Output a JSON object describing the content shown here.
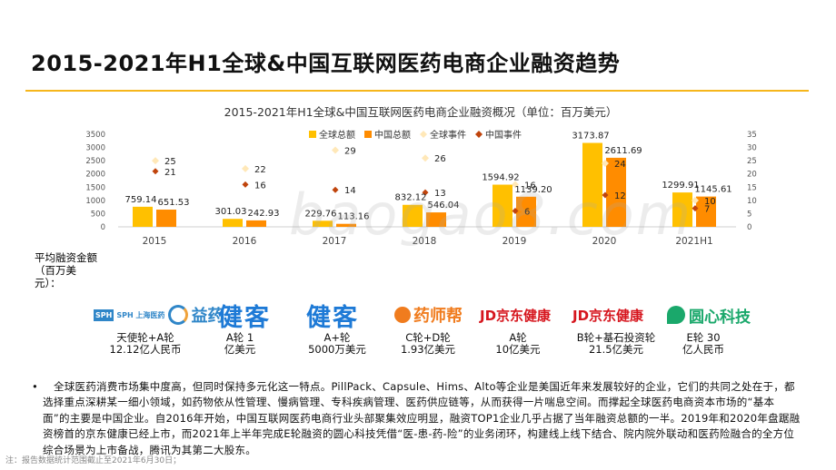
{
  "page": {
    "title": "2015-2021年H1全球&中国互联网医药电商企业融资趋势",
    "footnote": "注：报告数据统计范围截止至2021年6月30日；",
    "watermark": "baogao8.com",
    "accent_color": "#f6b61c"
  },
  "chart_data": {
    "type": "bar",
    "title": "2015-2021年H1全球&中国互联网医药电商企业融资概况（单位：百万美元）",
    "categories": [
      "2015",
      "2016",
      "2017",
      "2018",
      "2019",
      "2020",
      "2021H1"
    ],
    "series": [
      {
        "name": "全球总额",
        "kind": "bar",
        "axis": "left",
        "color": "#ffc000",
        "values": [
          759.14,
          301.03,
          229.76,
          832.12,
          1594.92,
          3173.87,
          1299.91
        ]
      },
      {
        "name": "中国总额",
        "kind": "bar",
        "axis": "left",
        "color": "#ff8c00",
        "values": [
          651.53,
          242.93,
          113.16,
          546.04,
          1139.2,
          2611.69,
          1145.61
        ]
      },
      {
        "name": "全球事件",
        "kind": "marker",
        "axis": "right",
        "color": "#ffe8b8",
        "values": [
          25,
          22,
          29,
          26,
          16,
          24,
          10
        ]
      },
      {
        "name": "中国事件",
        "kind": "marker",
        "axis": "right",
        "color": "#c0440c",
        "values": [
          21,
          16,
          14,
          13,
          6,
          12,
          7
        ]
      }
    ],
    "left_axis": {
      "ticks": [
        "0",
        "500",
        "1000",
        "1500",
        "2000",
        "2500",
        "3000",
        "3500"
      ],
      "ylim": [
        0,
        3500
      ]
    },
    "right_axis": {
      "ticks": [
        "0",
        "5",
        "10",
        "15",
        "20",
        "25",
        "30",
        "35"
      ],
      "ylim": [
        0,
        35
      ]
    },
    "legend_position": "top",
    "grid": false
  },
  "funding_label": "平均融资金额（百万美元）：",
  "companies": [
    {
      "logo_text": "益药",
      "logo_prefix": "SPH 上海医药",
      "color": "#2f86c8",
      "round": "天使轮+A轮",
      "amount": "12.12亿人民币"
    },
    {
      "logo_text": "健客",
      "color": "#1e7ad6",
      "round": "A轮 1",
      "amount": "亿美元"
    },
    {
      "logo_text": "健客",
      "color": "#1e7ad6",
      "round": "A+轮",
      "amount": "5000万美元"
    },
    {
      "logo_text": "药师帮",
      "color": "#f07c1e",
      "round": "C轮+D轮",
      "amount": "1.93亿美元"
    },
    {
      "logo_text": "JD京东健康",
      "color": "#d6161e",
      "round": "A轮",
      "amount": "10亿美元"
    },
    {
      "logo_text": "JD京东健康",
      "color": "#d6161e",
      "round": "B轮+基石投资轮",
      "amount": "21.5亿美元"
    },
    {
      "logo_text": "圆心科技",
      "color": "#1aa86b",
      "round": "E轮 30",
      "amount": "亿人民币"
    }
  ],
  "summary": {
    "bullet": "•",
    "text": "全球医药消费市场集中度高，但同时保持多元化这一特点。PillPack、Capsule、Hims、Alto等企业是美国近年来发展较好的企业，它们的共同之处在于，都选择重点深耕某一细小领域，如药物依从性管理、慢病管理、专科疾病管理、医药供应链等，从而获得一片喘息空间。而撑起全球医药电商资本市场的“基本面”的主要是中国企业。自2016年开始，中国互联网医药电商行业头部聚集效应明显，融资TOP1企业几乎占据了当年融资总额的一半。2019年和2020年盘踞融资榜首的京东健康已经上市，而2021年上半年完成E轮融资的圆心科技凭借“医-患-药-险”的业务闭环，构建线上线下结合、院内院外联动和医药险融合的全方位综合场景为上市备战，腾讯为其第二大股东。"
  }
}
